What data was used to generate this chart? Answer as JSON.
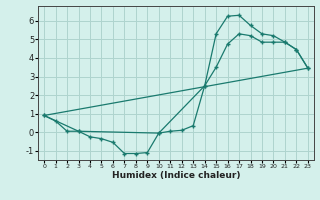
{
  "xlabel": "Humidex (Indice chaleur)",
  "bg_color": "#d4f0eb",
  "grid_color": "#aed4ce",
  "line_color": "#1a7a6e",
  "xlim": [
    -0.5,
    23.5
  ],
  "ylim": [
    -1.5,
    6.8
  ],
  "xticks": [
    0,
    1,
    2,
    3,
    4,
    5,
    6,
    7,
    8,
    9,
    10,
    11,
    12,
    13,
    14,
    15,
    16,
    17,
    18,
    19,
    20,
    21,
    22,
    23
  ],
  "yticks": [
    -1,
    0,
    1,
    2,
    3,
    4,
    5,
    6
  ],
  "line1_x": [
    0,
    1,
    2,
    3,
    4,
    5,
    6,
    7,
    8,
    9,
    10,
    11,
    12,
    13,
    14,
    15,
    16,
    17,
    18,
    19,
    20,
    21,
    22,
    23
  ],
  "line1_y": [
    0.9,
    0.6,
    0.05,
    0.05,
    -0.25,
    -0.35,
    -0.55,
    -1.15,
    -1.15,
    -1.1,
    -0.05,
    0.05,
    0.1,
    0.35,
    2.5,
    5.3,
    6.25,
    6.3,
    5.75,
    5.3,
    5.2,
    4.85,
    4.45,
    3.45
  ],
  "line2_x": [
    0,
    3,
    10,
    14,
    15,
    16,
    17,
    18,
    19,
    20,
    21,
    22,
    23
  ],
  "line2_y": [
    0.9,
    0.05,
    -0.05,
    2.5,
    3.5,
    4.75,
    5.3,
    5.2,
    4.85,
    4.85,
    4.85,
    4.45,
    3.45
  ],
  "line3_x": [
    0,
    23
  ],
  "line3_y": [
    0.9,
    3.45
  ]
}
